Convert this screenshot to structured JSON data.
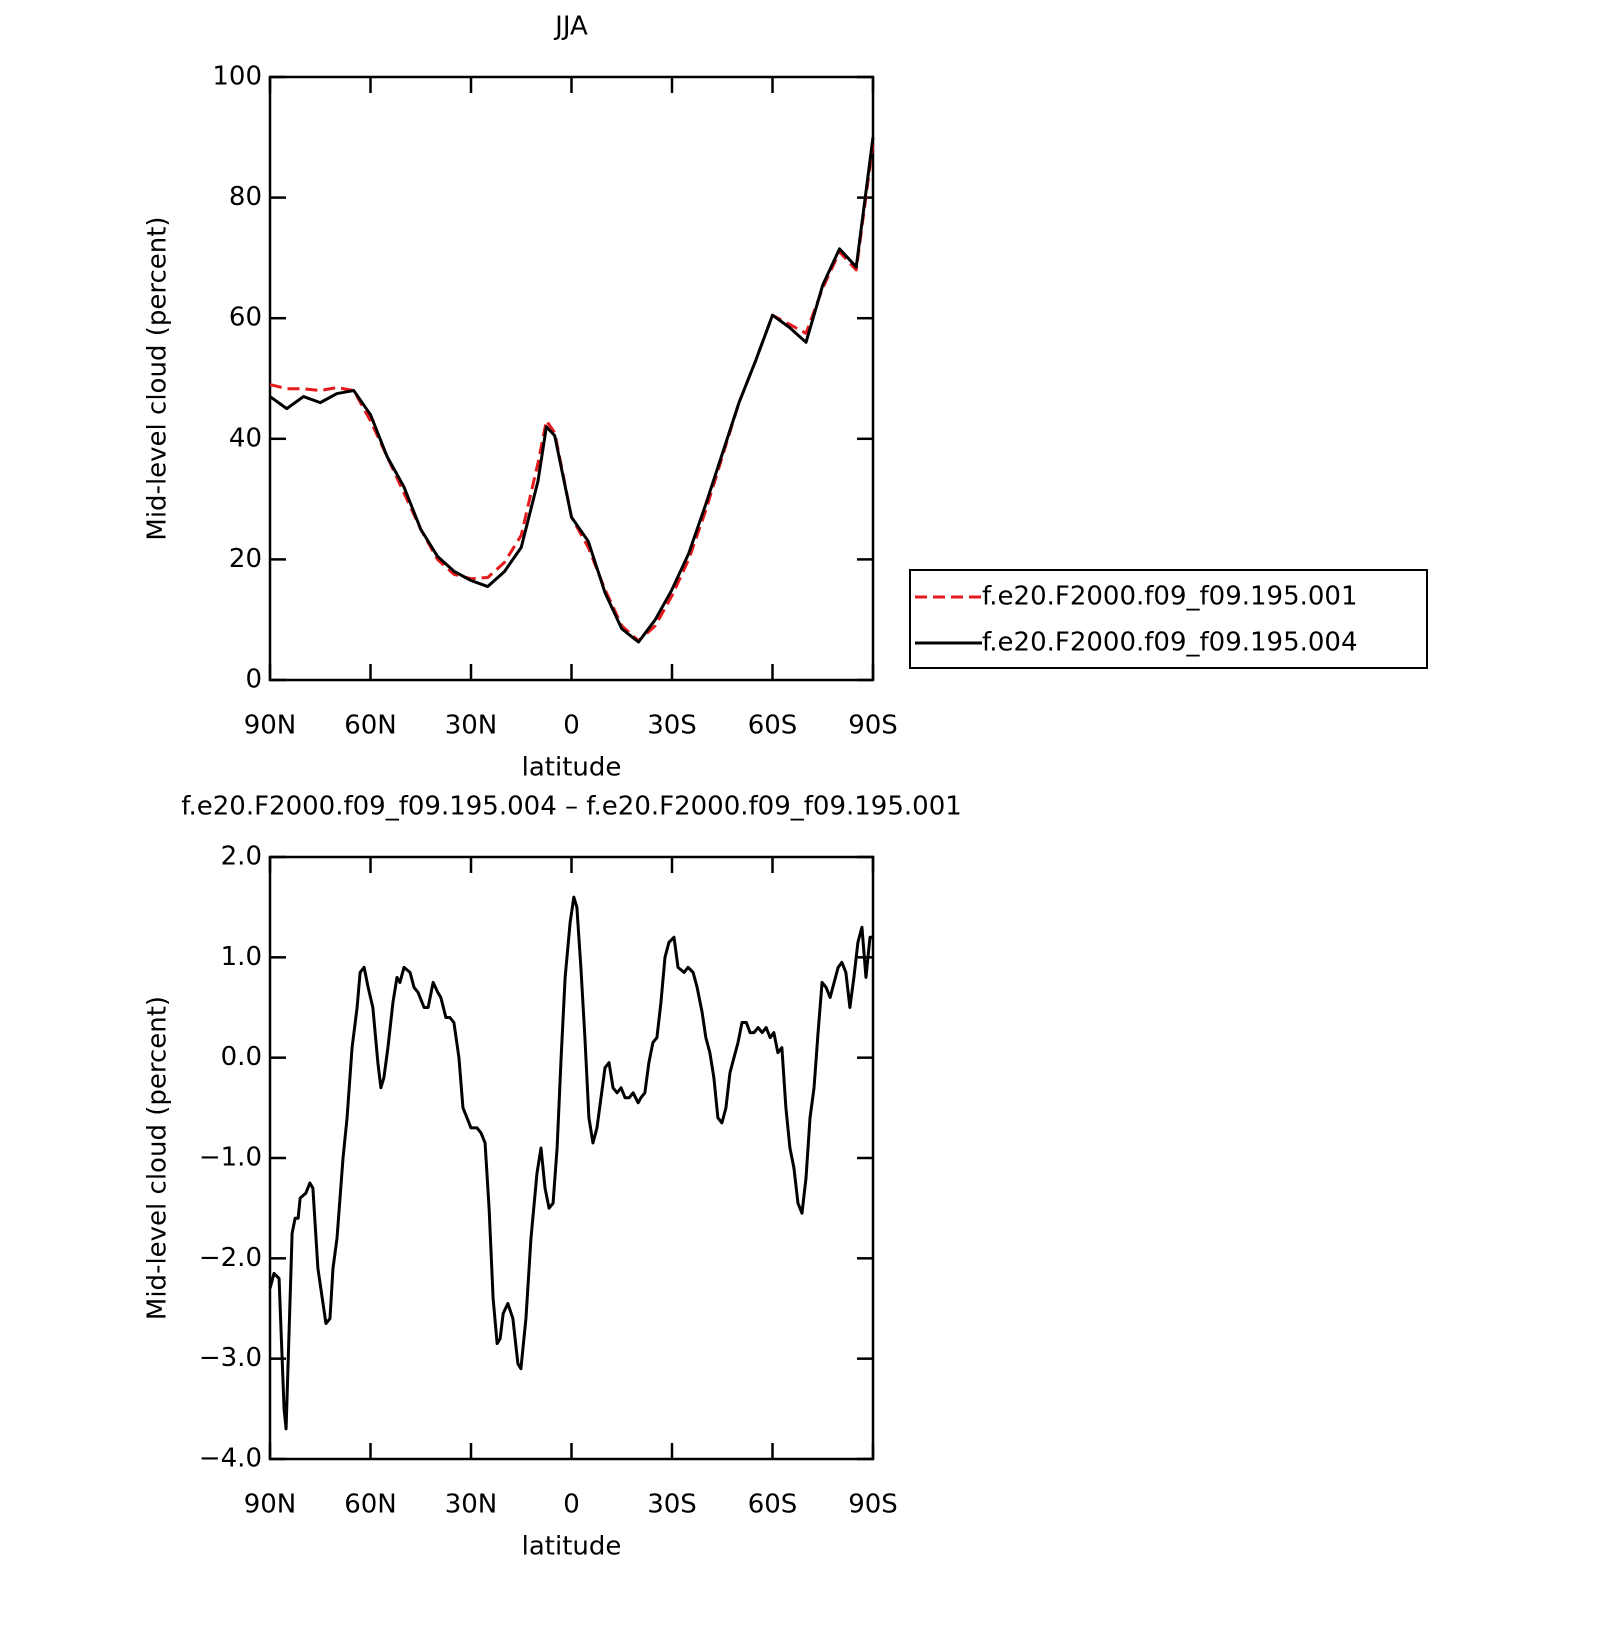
{
  "chart_data": [
    {
      "type": "line",
      "title": "JJA",
      "xlabel": "latitude",
      "ylabel": "Mid-level cloud (percent)",
      "xlim": [
        90,
        -90
      ],
      "ylim": [
        0,
        100
      ],
      "xticks": [
        {
          "value": 90,
          "label": "90N"
        },
        {
          "value": 60,
          "label": "60N"
        },
        {
          "value": 30,
          "label": "30N"
        },
        0,
        {
          "value": -30,
          "label": "30S"
        },
        {
          "value": -60,
          "label": "60S"
        },
        {
          "value": -90,
          "label": "90S"
        }
      ],
      "yticks": [
        0,
        20,
        40,
        60,
        80,
        100
      ],
      "legend": "right",
      "x": [
        90,
        85,
        80,
        75,
        70,
        65,
        60,
        55,
        50,
        45,
        40,
        35,
        30,
        25,
        20,
        15,
        10,
        7.5,
        5,
        0,
        -5,
        -10,
        -15,
        -20,
        -25,
        -30,
        -35,
        -40,
        -45,
        -50,
        -55,
        -60,
        -65,
        -70,
        -75,
        -80,
        -85,
        -90
      ],
      "series": [
        {
          "name": "f.e20.F2000.f09_f09.195.001",
          "color": "#e41a1c",
          "line_style": "dashed",
          "values": [
            49,
            48.3,
            48.3,
            48,
            48.5,
            48,
            43,
            37,
            31,
            25,
            20,
            17.5,
            16.8,
            17,
            19.5,
            24,
            36,
            43,
            41,
            27,
            22,
            15,
            9,
            6.5,
            9,
            14,
            20,
            28,
            37,
            46,
            53,
            60.5,
            59,
            57.5,
            65,
            71,
            68,
            89
          ]
        },
        {
          "name": "f.e20.F2000.f09_f09.195.004",
          "color": "#000000",
          "line_style": "solid",
          "values": [
            47,
            45,
            47,
            46,
            47.5,
            48,
            44,
            37,
            32,
            25,
            20.5,
            18,
            16.5,
            15.5,
            18,
            22,
            33,
            42,
            40.5,
            27,
            23,
            14.5,
            8.5,
            6.3,
            10,
            15,
            21,
            29,
            37.5,
            46,
            53,
            60.5,
            58.5,
            56,
            65.5,
            71.5,
            68.5,
            90
          ]
        }
      ]
    },
    {
      "type": "line",
      "title": "f.e20.F2000.f09_f09.195.004 – f.e20.F2000.f09_f09.195.001",
      "xlabel": "latitude",
      "ylabel": "Mid-level cloud (percent)",
      "xlim": [
        90,
        -90
      ],
      "ylim": [
        -4,
        2
      ],
      "xticks": [
        {
          "value": 90,
          "label": "90N"
        },
        {
          "value": 60,
          "label": "60N"
        },
        {
          "value": 30,
          "label": "30N"
        },
        0,
        {
          "value": -30,
          "label": "30S"
        },
        {
          "value": -60,
          "label": "60S"
        },
        {
          "value": -90,
          "label": "90S"
        }
      ],
      "yticks": [
        {
          "value": -4,
          "label": "−4.0"
        },
        {
          "value": -3,
          "label": "−3.0"
        },
        {
          "value": -2,
          "label": "−2.0"
        },
        {
          "value": -1,
          "label": "−1.0"
        },
        {
          "value": 0,
          "label": "0.0"
        },
        {
          "value": 1,
          "label": "1.0"
        },
        {
          "value": 2,
          "label": "2.0"
        }
      ],
      "x": [
        90.0,
        88.8,
        87.3,
        85.8,
        85.2,
        83.4,
        82.5,
        81.6,
        81.0,
        79.3,
        78.1,
        77.2,
        75.7,
        73.3,
        72.1,
        71.2,
        70.0,
        68.2,
        67.0,
        65.5,
        64.0,
        63.1,
        61.9,
        60.7,
        59.3,
        57.8,
        56.9,
        56.0,
        54.8,
        53.3,
        52.1,
        51.2,
        50.0,
        48.2,
        47.0,
        45.8,
        44.0,
        42.8,
        41.3,
        39.9,
        39.0,
        37.5,
        36.3,
        35.1,
        33.6,
        32.4,
        31.2,
        30.0,
        28.2,
        27.0,
        25.8,
        24.6,
        23.4,
        22.2,
        21.3,
        20.4,
        19.0,
        17.5,
        16.0,
        15.1,
        13.6,
        12.1,
        10.3,
        9.1,
        7.9,
        6.7,
        5.5,
        4.3,
        3.1,
        1.9,
        0.4,
        -0.7,
        -1.6,
        -2.8,
        -4.0,
        -5.2,
        -6.4,
        -7.6,
        -8.8,
        -10.0,
        -11.2,
        -12.4,
        -13.6,
        -14.8,
        -16.0,
        -17.2,
        -18.4,
        -19.9,
        -20.7,
        -21.9,
        -23.1,
        -24.3,
        -25.5,
        -26.7,
        -27.9,
        -29.1,
        -30.6,
        -31.8,
        -33.6,
        -34.8,
        -36.3,
        -37.5,
        -39.0,
        -40.1,
        -41.3,
        -42.5,
        -43.7,
        -44.9,
        -46.1,
        -47.3,
        -48.5,
        -49.7,
        -50.9,
        -52.2,
        -53.3,
        -54.5,
        -55.7,
        -56.9,
        -58.1,
        -59.3,
        -60.4,
        -61.6,
        -62.8,
        -64.0,
        -65.2,
        -66.4,
        -67.6,
        -68.8,
        -70.0,
        -71.2,
        -72.4,
        -73.6,
        -74.8,
        -76.0,
        -77.2,
        -78.4,
        -79.6,
        -80.7,
        -81.9,
        -83.1,
        -84.3,
        -85.5,
        -86.7,
        -87.9,
        -89.1,
        -90.0
      ],
      "series": [
        {
          "color": "#000000",
          "line_style": "solid",
          "values": [
            -2.3,
            -2.15,
            -2.2,
            -3.5,
            -3.7,
            -1.75,
            -1.6,
            -1.6,
            -1.4,
            -1.35,
            -1.25,
            -1.3,
            -2.1,
            -2.65,
            -2.6,
            -2.1,
            -1.8,
            -1.0,
            -0.6,
            0.1,
            0.5,
            0.85,
            0.9,
            0.7,
            0.5,
            -0.05,
            -0.3,
            -0.2,
            0.1,
            0.55,
            0.8,
            0.75,
            0.9,
            0.85,
            0.7,
            0.65,
            0.5,
            0.5,
            0.75,
            0.65,
            0.6,
            0.4,
            0.4,
            0.35,
            0.0,
            -0.5,
            -0.6,
            -0.7,
            -0.7,
            -0.75,
            -0.85,
            -1.5,
            -2.4,
            -2.85,
            -2.8,
            -2.55,
            -2.45,
            -2.6,
            -3.05,
            -3.1,
            -2.6,
            -1.8,
            -1.15,
            -0.9,
            -1.3,
            -1.5,
            -1.45,
            -0.9,
            0.0,
            0.8,
            1.35,
            1.6,
            1.5,
            0.9,
            0.2,
            -0.6,
            -0.85,
            -0.7,
            -0.4,
            -0.1,
            -0.05,
            -0.3,
            -0.35,
            -0.3,
            -0.4,
            -0.4,
            -0.35,
            -0.45,
            -0.4,
            -0.35,
            -0.05,
            0.15,
            0.2,
            0.55,
            1.0,
            1.15,
            1.2,
            0.9,
            0.85,
            0.9,
            0.85,
            0.7,
            0.45,
            0.2,
            0.05,
            -0.2,
            -0.6,
            -0.65,
            -0.5,
            -0.15,
            0.0,
            0.15,
            0.35,
            0.35,
            0.25,
            0.25,
            0.3,
            0.25,
            0.3,
            0.2,
            0.25,
            0.05,
            0.1,
            -0.5,
            -0.9,
            -1.1,
            -1.45,
            -1.55,
            -1.2,
            -0.6,
            -0.3,
            0.25,
            0.75,
            0.7,
            0.6,
            0.75,
            0.9,
            0.95,
            0.85,
            0.5,
            0.8,
            1.15,
            1.3,
            0.8,
            1.2,
            1.2
          ]
        }
      ]
    }
  ]
}
